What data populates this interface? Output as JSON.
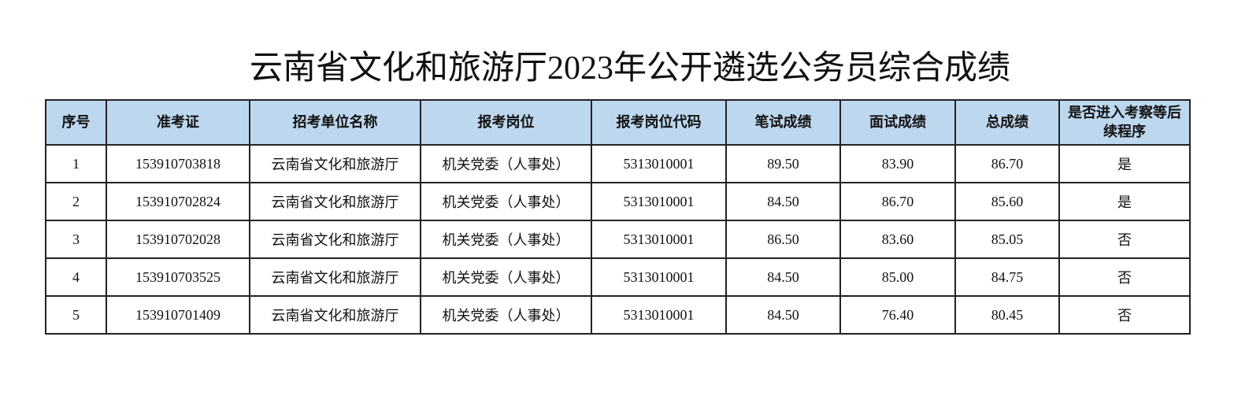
{
  "header": {
    "title": "云南省文化和旅游厅2023年公开遴选公务员综合成绩"
  },
  "table": {
    "columns": [
      "序号",
      "准考证",
      "招考单位名称",
      "报考岗位",
      "报考岗位代码",
      "笔试成绩",
      "面试成绩",
      "总成绩",
      "是否进入考察等后续程序"
    ],
    "rows": [
      [
        "1",
        "153910703818",
        "云南省文化和旅游厅",
        "机关党委（人事处）",
        "5313010001",
        "89.50",
        "83.90",
        "86.70",
        "是"
      ],
      [
        "2",
        "153910702824",
        "云南省文化和旅游厅",
        "机关党委（人事处）",
        "5313010001",
        "84.50",
        "86.70",
        "85.60",
        "是"
      ],
      [
        "3",
        "153910702028",
        "云南省文化和旅游厅",
        "机关党委（人事处）",
        "5313010001",
        "86.50",
        "83.60",
        "85.05",
        "否"
      ],
      [
        "4",
        "153910703525",
        "云南省文化和旅游厅",
        "机关党委（人事处）",
        "5313010001",
        "84.50",
        "85.00",
        "84.75",
        "否"
      ],
      [
        "5",
        "153910701409",
        "云南省文化和旅游厅",
        "机关党委（人事处）",
        "5313010001",
        "84.50",
        "76.40",
        "80.45",
        "否"
      ]
    ]
  }
}
